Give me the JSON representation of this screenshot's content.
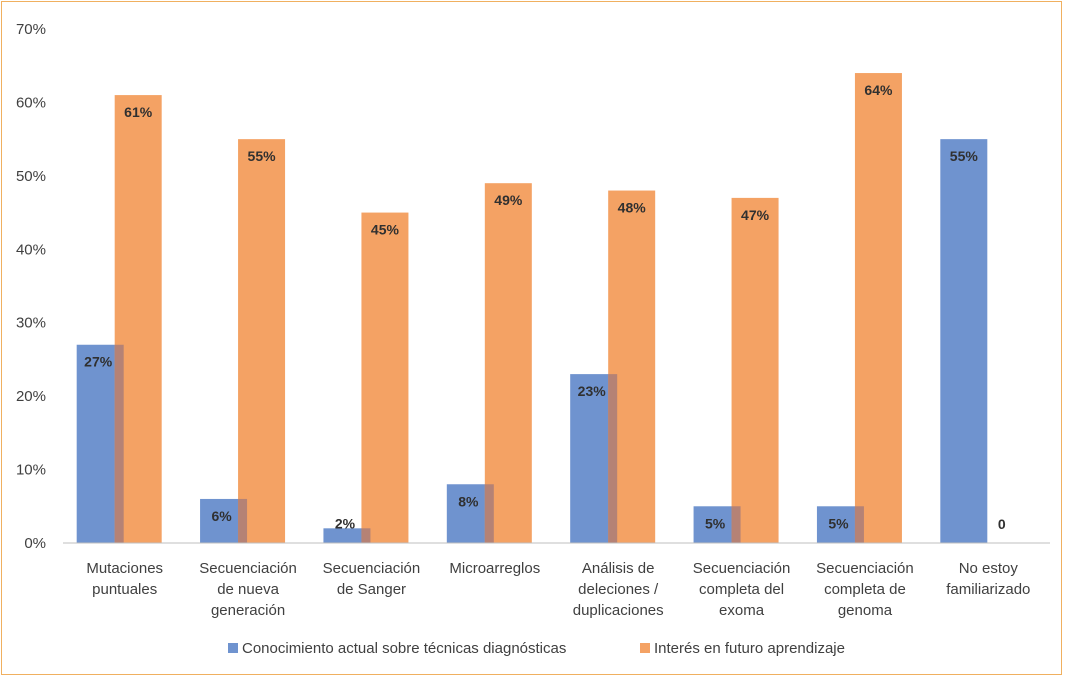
{
  "chart_data": {
    "type": "bar",
    "title": "",
    "xlabel": "",
    "ylabel": "",
    "ylim": [
      0,
      0.7
    ],
    "y_ticks": [
      0,
      0.1,
      0.2,
      0.3,
      0.4,
      0.5,
      0.6,
      0.7
    ],
    "y_tick_labels": [
      "0%",
      "10%",
      "20%",
      "30%",
      "40%",
      "50%",
      "60%",
      "70%"
    ],
    "grid": false,
    "legend_position": "bottom",
    "categories": [
      [
        "Mutaciones",
        "puntuales"
      ],
      [
        "Secuenciación",
        "de nueva",
        "generación"
      ],
      [
        "Secuenciación",
        "de Sanger"
      ],
      [
        "Microarreglos"
      ],
      [
        "Análisis de",
        "deleciones /",
        "duplicaciones"
      ],
      [
        "Secuenciación",
        "completa del",
        "exoma"
      ],
      [
        "Secuenciación",
        "completa de",
        "genoma"
      ],
      [
        "No estoy",
        "familiarizado"
      ]
    ],
    "series": [
      {
        "name": "Conocimiento actual sobre técnicas diagnósticas",
        "color": "#6f93cf",
        "values": [
          0.27,
          0.06,
          0.02,
          0.08,
          0.23,
          0.05,
          0.05,
          0.55
        ],
        "labels": [
          "27%",
          "6%",
          "2%",
          "8%",
          "23%",
          "5%",
          "5%",
          "55%"
        ]
      },
      {
        "name": "Interés en futuro aprendizaje",
        "color": "#f4a264",
        "values": [
          0.61,
          0.55,
          0.45,
          0.49,
          0.48,
          0.47,
          0.64,
          0
        ],
        "labels": [
          "61%",
          "55%",
          "45%",
          "49%",
          "48%",
          "47%",
          "64%",
          "0"
        ]
      }
    ]
  }
}
